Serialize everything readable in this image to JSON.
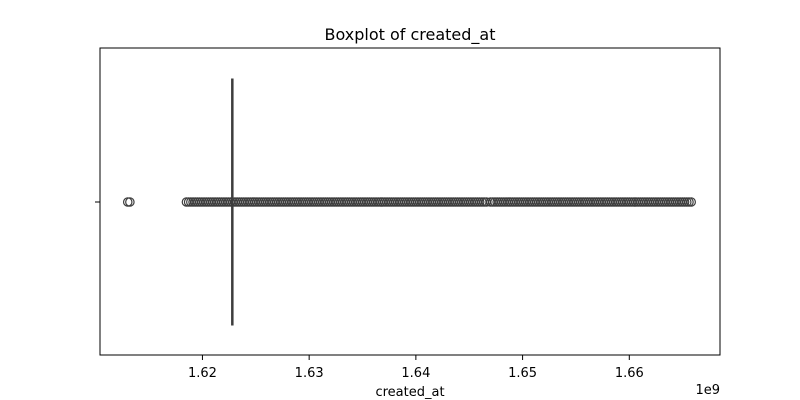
{
  "chart_data": {
    "type": "boxplot",
    "title": "Boxplot of created_at",
    "xlabel": "created_at",
    "ylabel": "",
    "x_offset_label": "1e9",
    "xlim": [
      1.6104,
      1.6685
    ],
    "xticks": [
      {
        "value": 1.62,
        "label": "1.62"
      },
      {
        "value": 1.63,
        "label": "1.63"
      },
      {
        "value": 1.64,
        "label": "1.64"
      },
      {
        "value": 1.65,
        "label": "1.65"
      },
      {
        "value": 1.66,
        "label": "1.66"
      }
    ],
    "box": {
      "whisker_low": 1.6228,
      "q1": 1.6228,
      "median": 1.6228,
      "q3": 1.6228,
      "whisker_high": 1.6228
    },
    "outlier_ranges": [
      [
        1.613,
        1.6132
      ],
      [
        1.6185,
        1.6466
      ],
      [
        1.647,
        1.6658
      ]
    ],
    "grid": false,
    "color": "#3d3d3d"
  }
}
